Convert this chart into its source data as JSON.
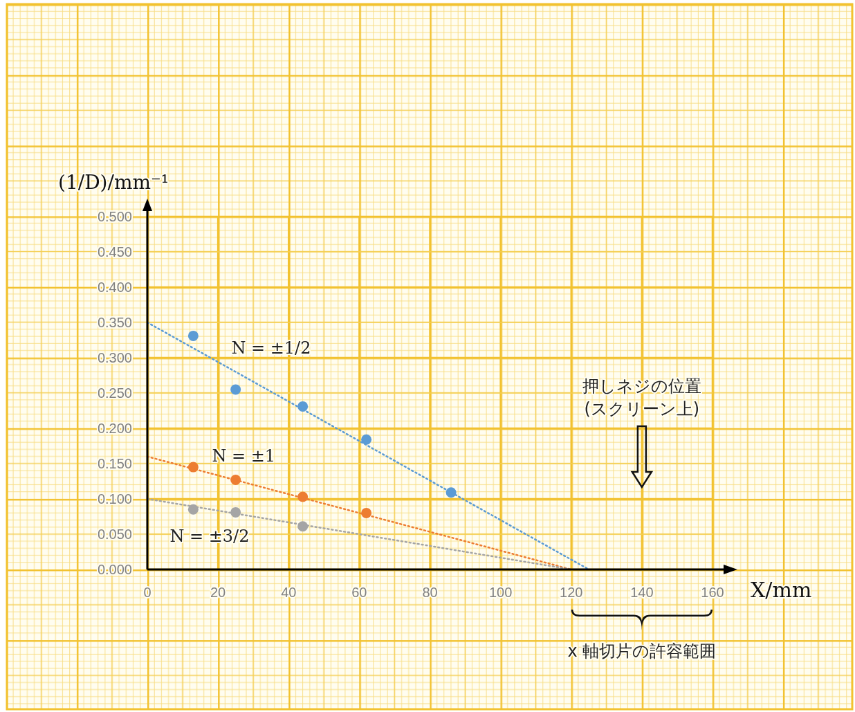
{
  "chart_data": {
    "type": "scatter",
    "xlabel": "X/mm",
    "ylabel": "(1/D)/mm⁻¹",
    "xlim": [
      0,
      160
    ],
    "xticks": [
      0,
      20,
      40,
      60,
      80,
      100,
      120,
      140,
      160
    ],
    "ylim": [
      0,
      0.5
    ],
    "yticks": [
      {
        "value": 0,
        "label": "0.000"
      },
      {
        "value": 0.05,
        "label": "0.050"
      },
      {
        "value": 0.1,
        "label": "0.100"
      },
      {
        "value": 0.15,
        "label": "0.150"
      },
      {
        "value": 0.2,
        "label": "0.200"
      },
      {
        "value": 0.25,
        "label": "0.250"
      },
      {
        "value": 0.3,
        "label": "0.300"
      },
      {
        "value": 0.35,
        "label": "0.350"
      },
      {
        "value": 0.4,
        "label": "0.400"
      },
      {
        "value": 0.45,
        "label": "0.450"
      },
      {
        "value": 0.5,
        "label": "0.500"
      }
    ],
    "grid": true,
    "marker": "circle",
    "series": [
      {
        "name": "N = ±1/2",
        "color": "#5b9bd5",
        "x": [
          13,
          25,
          44,
          62,
          86
        ],
        "values": [
          0.331,
          0.255,
          0.231,
          0.184,
          0.109
        ]
      },
      {
        "name": "N = ±1",
        "color": "#ed7d31",
        "x": [
          13,
          25,
          44,
          62
        ],
        "values": [
          0.145,
          0.127,
          0.103,
          0.08
        ]
      },
      {
        "name": "N = ±3/2",
        "color": "#a5a5a5",
        "x": [
          13,
          25,
          44
        ],
        "values": [
          0.085,
          0.081,
          0.061
        ]
      },
      {
        "type": "line",
        "marker": "none",
        "line_style": "dotted",
        "color": "#5b9bd5",
        "x": [
          0,
          125
        ],
        "values": [
          0.35,
          0
        ]
      },
      {
        "type": "line",
        "marker": "none",
        "line_style": "dotted",
        "color": "#ed7d31",
        "x": [
          0,
          120
        ],
        "values": [
          0.16,
          0
        ]
      },
      {
        "type": "line",
        "marker": "none",
        "line_style": "dotted",
        "color": "#a5a5a5",
        "x": [
          0,
          120
        ],
        "values": [
          0.1,
          0
        ]
      }
    ],
    "annotations": [
      "押しネジの位置\n(スクリーン上)",
      "x 軸切片の許容範囲"
    ]
  }
}
